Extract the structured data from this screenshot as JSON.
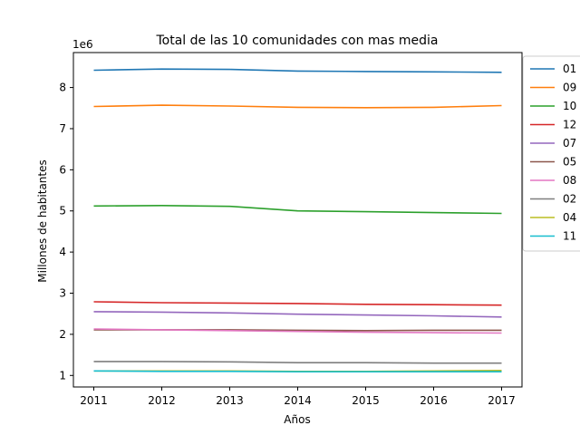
{
  "chart_data": {
    "type": "line",
    "title": "Total de las 10 comunidades con mas media",
    "xlabel": "Años",
    "ylabel": "Millones de habitantes",
    "y_offset_label": "1e6",
    "x": [
      2011,
      2012,
      2013,
      2014,
      2015,
      2016,
      2017
    ],
    "xlim": [
      2010.7,
      2017.3
    ],
    "ylim": [
      0.72,
      8.85
    ],
    "y_ticks": [
      1,
      2,
      3,
      4,
      5,
      6,
      7,
      8
    ],
    "grid": false,
    "legend_position": "right-outside-top",
    "series": [
      {
        "name": "01",
        "color": "#1f77b4",
        "values": [
          8.42,
          8.45,
          8.44,
          8.4,
          8.39,
          8.38,
          8.37
        ]
      },
      {
        "name": "09",
        "color": "#ff7f0e",
        "values": [
          7.54,
          7.57,
          7.55,
          7.52,
          7.51,
          7.52,
          7.56
        ]
      },
      {
        "name": "10",
        "color": "#2ca02c",
        "values": [
          5.12,
          5.13,
          5.11,
          5.0,
          4.98,
          4.96,
          4.94
        ]
      },
      {
        "name": "12",
        "color": "#d62728",
        "values": [
          2.79,
          2.77,
          2.76,
          2.75,
          2.73,
          2.72,
          2.71
        ]
      },
      {
        "name": "07",
        "color": "#9467bd",
        "values": [
          2.55,
          2.54,
          2.52,
          2.49,
          2.47,
          2.45,
          2.42
        ]
      },
      {
        "name": "05",
        "color": "#8c564b",
        "values": [
          2.11,
          2.11,
          2.11,
          2.1,
          2.09,
          2.1,
          2.1
        ]
      },
      {
        "name": "08",
        "color": "#e377c2",
        "values": [
          2.13,
          2.11,
          2.09,
          2.07,
          2.05,
          2.04,
          2.03
        ]
      },
      {
        "name": "02",
        "color": "#7f7f7f",
        "values": [
          1.34,
          1.34,
          1.33,
          1.31,
          1.31,
          1.3,
          1.3
        ]
      },
      {
        "name": "04",
        "color": "#bcbd22",
        "values": [
          1.11,
          1.11,
          1.11,
          1.1,
          1.1,
          1.11,
          1.12
        ]
      },
      {
        "name": "11",
        "color": "#17becf",
        "values": [
          1.11,
          1.1,
          1.1,
          1.09,
          1.09,
          1.09,
          1.09
        ]
      }
    ]
  }
}
